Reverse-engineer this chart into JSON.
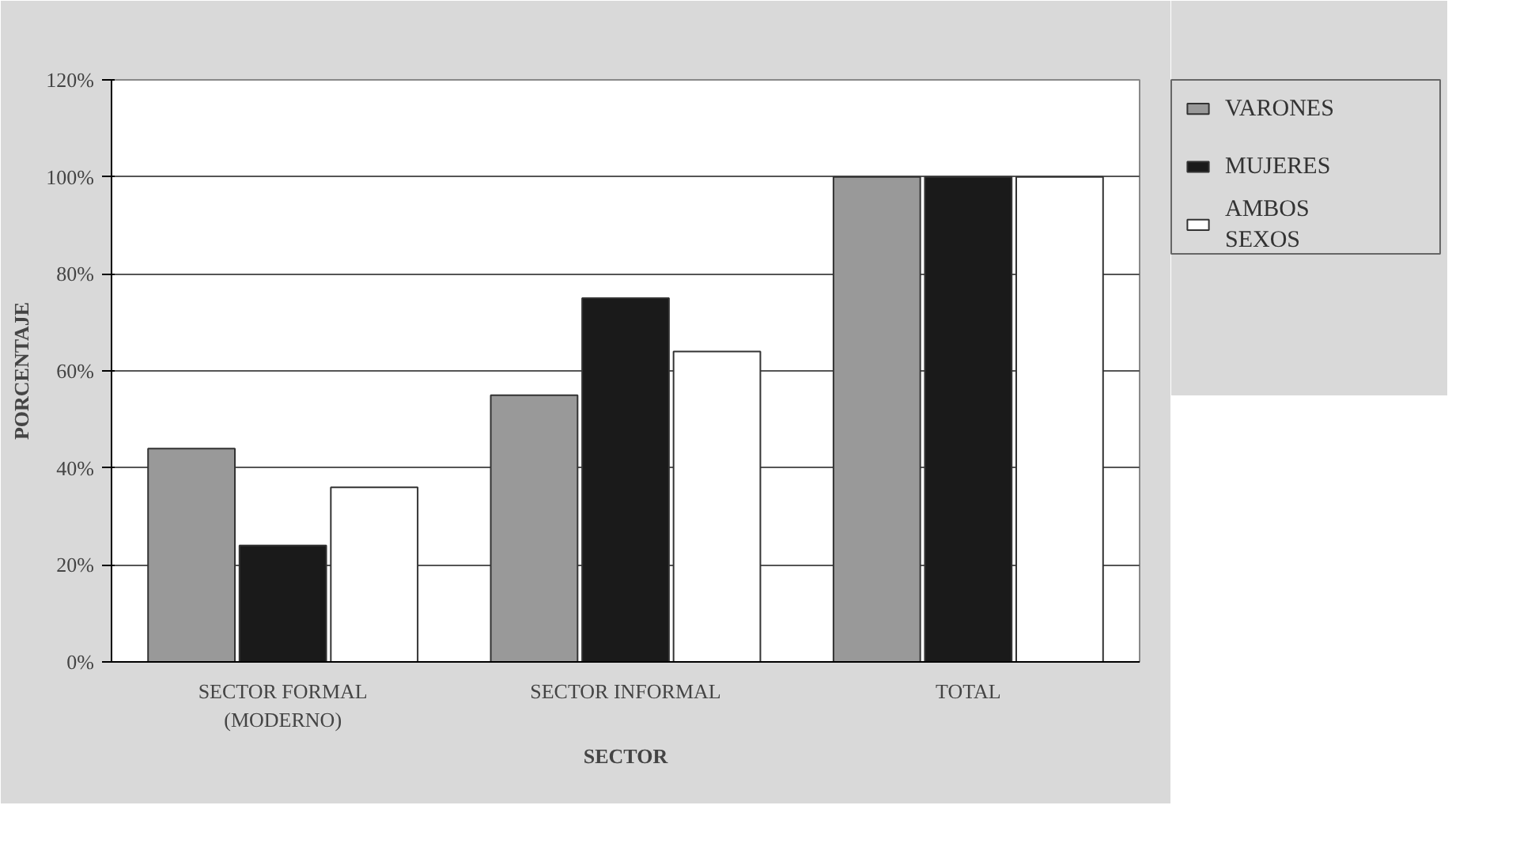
{
  "chart_data": {
    "type": "bar",
    "xlabel": "SECTOR",
    "ylabel": "PORCENTAJE",
    "categories": [
      "SECTOR FORMAL\n(MODERNO)",
      "SECTOR INFORMAL",
      "TOTAL"
    ],
    "series": [
      {
        "name": "VARONES",
        "color": "#999999",
        "values": [
          44,
          55,
          100
        ]
      },
      {
        "name": "MUJERES",
        "color": "#1a1a1a",
        "values": [
          24,
          75,
          100
        ]
      },
      {
        "name": "AMBOS\nSEXOS",
        "color": "#ffffff",
        "values": [
          36,
          64,
          100
        ]
      }
    ],
    "ylim": [
      0,
      120
    ],
    "yticks": [
      {
        "value": 0,
        "label": "0%"
      },
      {
        "value": 20,
        "label": "20%"
      },
      {
        "value": 40,
        "label": "40%"
      },
      {
        "value": 60,
        "label": "60%"
      },
      {
        "value": 80,
        "label": "80%"
      },
      {
        "value": 100,
        "label": "100%"
      },
      {
        "value": 120,
        "label": "120%"
      }
    ],
    "grid": "y",
    "legend": "right"
  }
}
